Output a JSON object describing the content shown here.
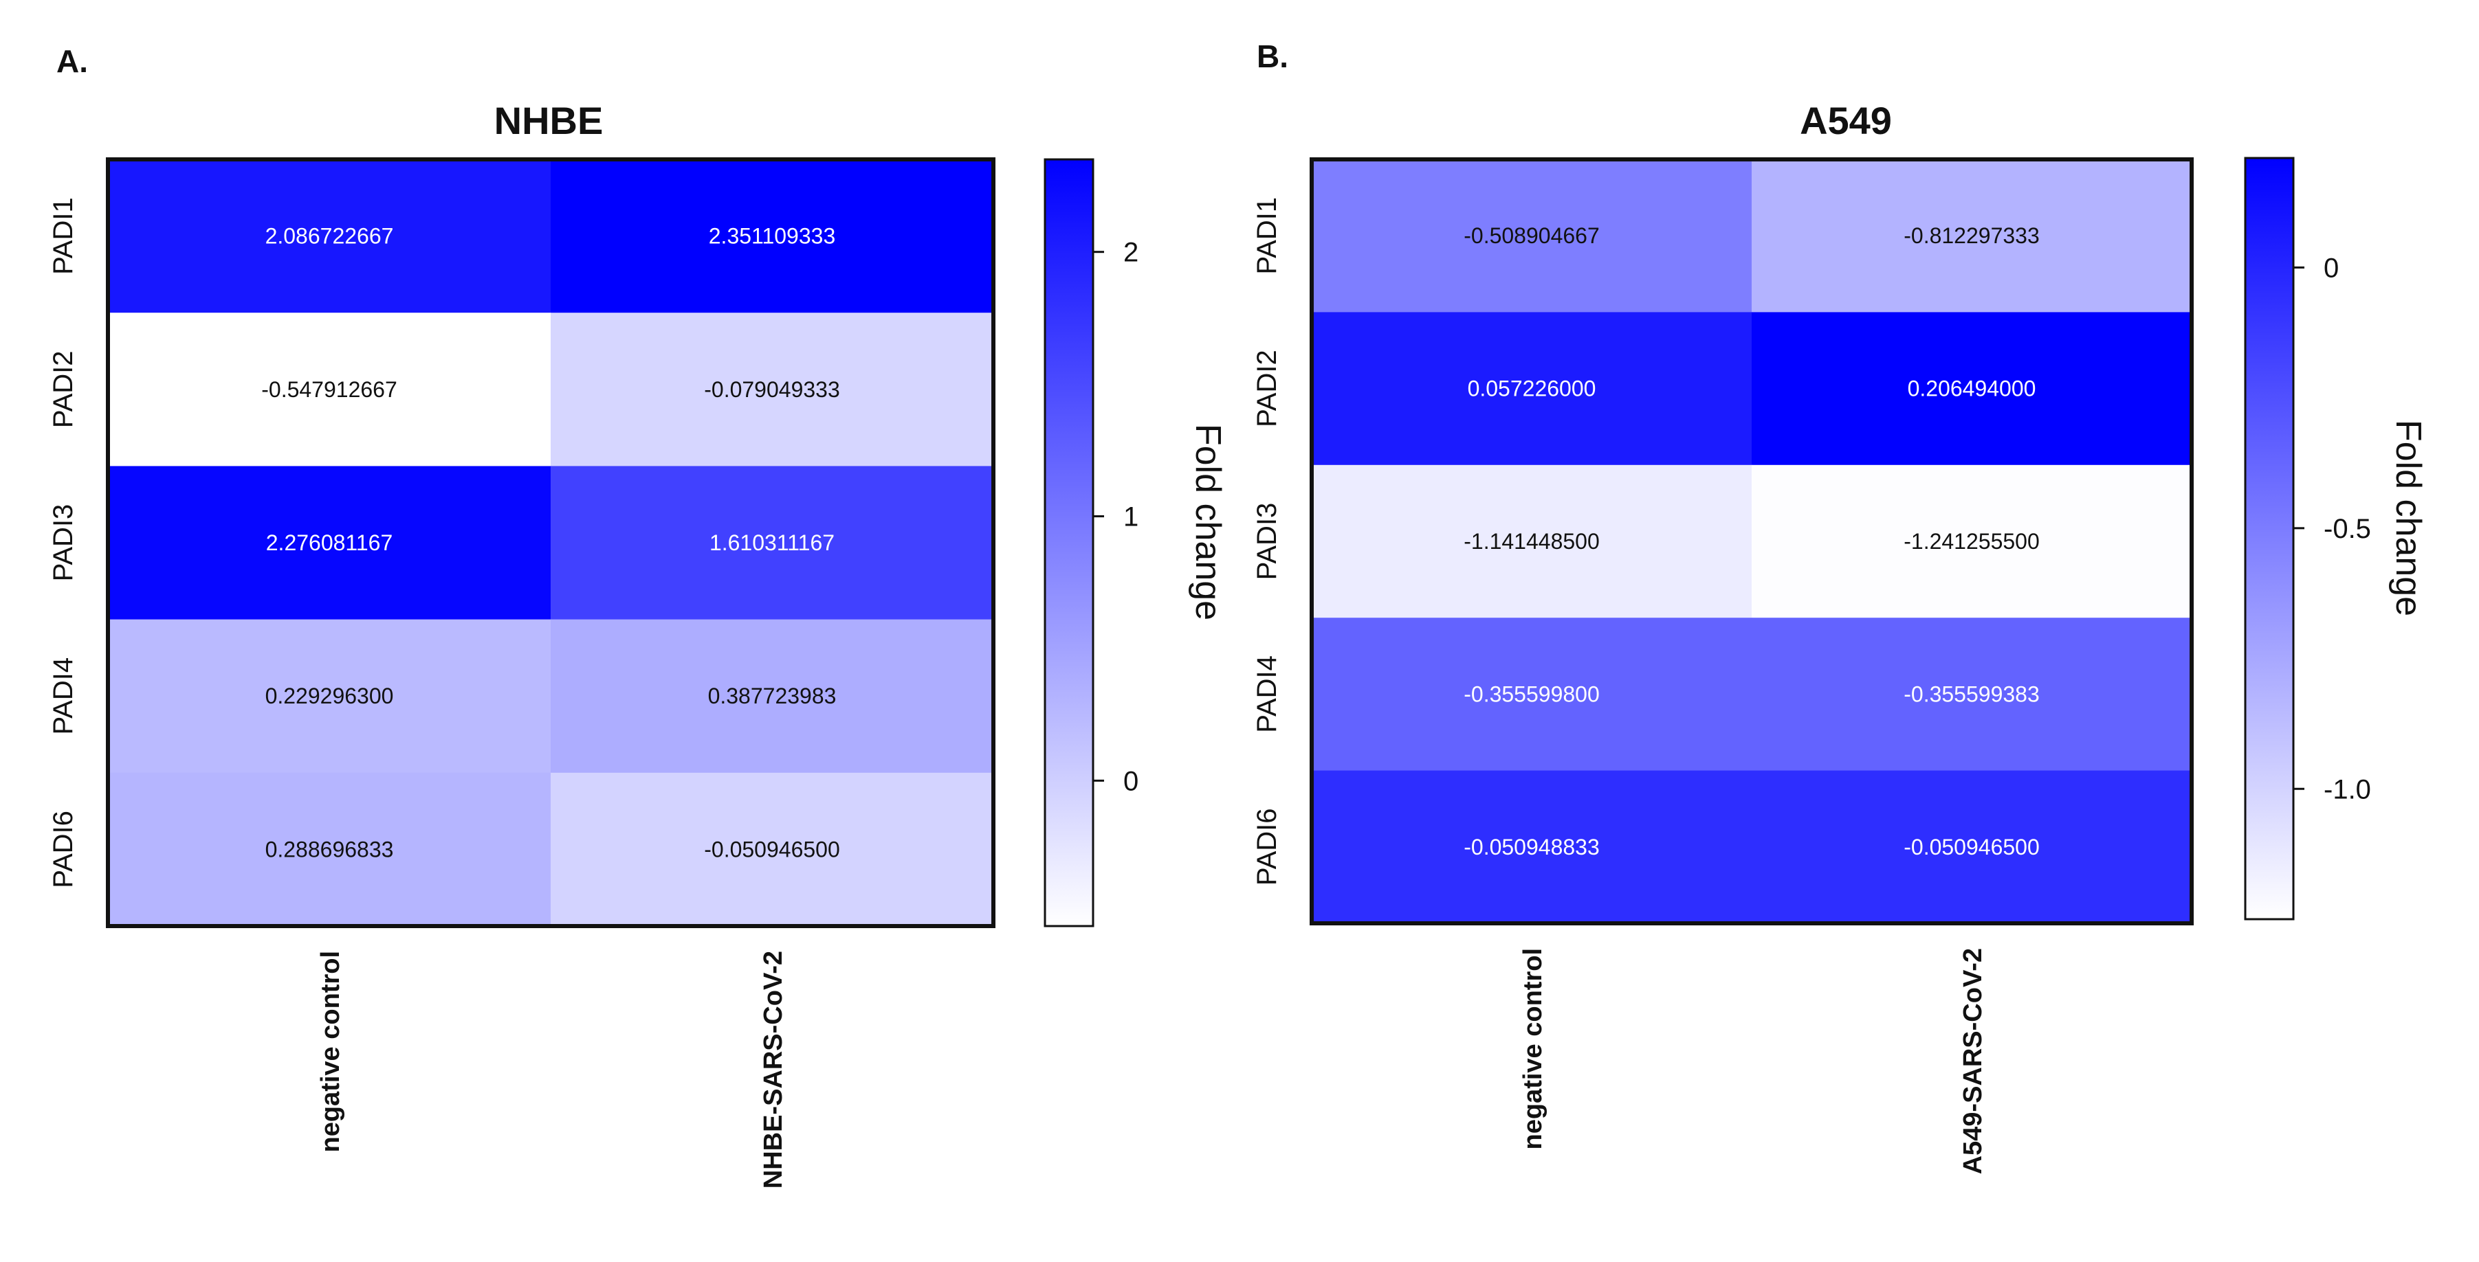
{
  "chart_data": [
    {
      "type": "heatmap",
      "panel_label": "A.",
      "title": "NHBE",
      "rows": [
        "PADI1",
        "PADI2",
        "PADI3",
        "PADI4",
        "PADI6"
      ],
      "columns": [
        "negative control",
        "NHBE-SARS-CoV-2"
      ],
      "values": [
        [
          2.086722667,
          2.351109333
        ],
        [
          -0.547912667,
          -0.079049333
        ],
        [
          2.276081167,
          1.610311167
        ],
        [
          0.2292963,
          0.387723983
        ],
        [
          0.288696833,
          -0.0509465
        ]
      ],
      "value_labels": [
        [
          "2.086722667",
          "2.351109333"
        ],
        [
          "-0.547912667",
          "-0.079049333"
        ],
        [
          "2.276081167",
          "1.610311167"
        ],
        [
          "0.229296300",
          "0.387723983"
        ],
        [
          "0.288696833",
          "-0.050946500"
        ]
      ],
      "colorbar": {
        "label": "Fold change",
        "range": [
          -0.55,
          2.35
        ],
        "ticks": [
          0,
          1,
          2
        ],
        "tick_labels": [
          "0",
          "1",
          "2"
        ],
        "low_color": "#ffffff",
        "high_color": "#0000ff"
      }
    },
    {
      "type": "heatmap",
      "panel_label": "B.",
      "title": "A549",
      "rows": [
        "PADI1",
        "PADI2",
        "PADI3",
        "PADI4",
        "PADI6"
      ],
      "columns": [
        "negative control",
        "A549-SARS-CoV-2"
      ],
      "values": [
        [
          -0.508904667,
          -0.812297333
        ],
        [
          0.057226,
          0.206494
        ],
        [
          -1.1414485,
          -1.2412555
        ],
        [
          -0.3555998,
          -0.355599383
        ],
        [
          -0.050948833,
          -0.0509465
        ]
      ],
      "value_labels": [
        [
          "-0.508904667",
          "-0.812297333"
        ],
        [
          "0.057226000",
          "0.206494000"
        ],
        [
          "-1.141448500",
          "-1.241255500"
        ],
        [
          "-0.355599800",
          "-0.355599383"
        ],
        [
          "-0.050948833",
          "-0.050946500"
        ]
      ],
      "colorbar": {
        "label": "Fold change",
        "range": [
          -1.25,
          0.21
        ],
        "ticks": [
          0,
          -0.5,
          -1.0
        ],
        "tick_labels": [
          "0",
          "-0.5",
          "-1.0"
        ],
        "low_color": "#ffffff",
        "high_color": "#0000ff"
      }
    }
  ]
}
